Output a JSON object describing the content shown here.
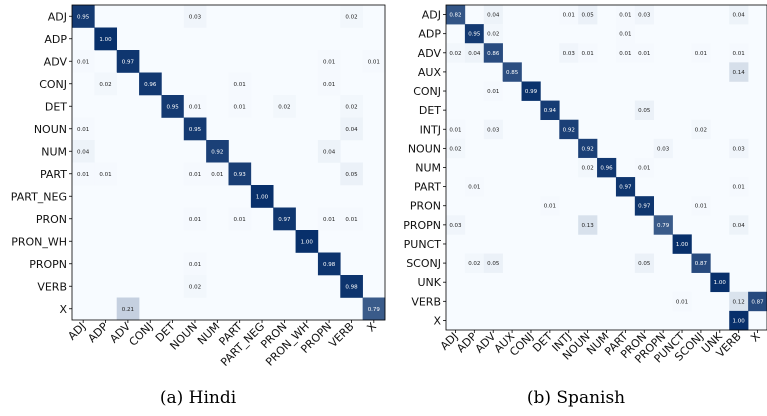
{
  "chart_data": [
    {
      "type": "heatmap",
      "caption": "(a) Hindi",
      "rows": [
        "ADJ",
        "ADP",
        "ADV",
        "CONJ",
        "DET",
        "NOUN",
        "NUM",
        "PART",
        "PART_NEG",
        "PRON",
        "PRON_WH",
        "PROPN",
        "VERB",
        "X"
      ],
      "cols": [
        "ADJ",
        "ADP",
        "ADV",
        "CONJ",
        "DET",
        "NOUN",
        "NUM",
        "PART",
        "PART_NEG",
        "PRON",
        "PRON_WH",
        "PROPN",
        "VERB",
        "X"
      ],
      "cells": [
        [
          "0.95",
          "",
          "",
          "",
          "",
          "0.03",
          "",
          "",
          "",
          "",
          "",
          "",
          "0.02",
          ""
        ],
        [
          "",
          "1.00",
          "",
          "",
          "",
          "",
          "",
          "",
          "",
          "",
          "",
          "",
          "",
          ""
        ],
        [
          "0.01",
          "",
          "0.97",
          "",
          "",
          "",
          "",
          "",
          "",
          "",
          "",
          "0.01",
          "",
          "0.01"
        ],
        [
          "",
          "0.02",
          "",
          "0.96",
          "",
          "",
          "",
          "0.01",
          "",
          "",
          "",
          "0.01",
          "",
          ""
        ],
        [
          "",
          "",
          "",
          "",
          "0.95",
          "0.01",
          "",
          "0.01",
          "",
          "0.02",
          "",
          "",
          "0.02",
          ""
        ],
        [
          "0.01",
          "",
          "",
          "",
          "",
          "0.95",
          "",
          "",
          "",
          "",
          "",
          "",
          "0.04",
          ""
        ],
        [
          "0.04",
          "",
          "",
          "",
          "",
          "",
          "0.92",
          "",
          "",
          "",
          "",
          "0.04",
          "",
          ""
        ],
        [
          "0.01",
          "0.01",
          "",
          "",
          "",
          "0.01",
          "0.01",
          "0.93",
          "",
          "",
          "",
          "",
          "0.05",
          ""
        ],
        [
          "",
          "",
          "",
          "",
          "",
          "",
          "",
          "",
          "1.00",
          "",
          "",
          "",
          "",
          ""
        ],
        [
          "",
          "",
          "",
          "",
          "",
          "0.01",
          "",
          "0.01",
          "",
          "0.97",
          "",
          "0.01",
          "0.01",
          ""
        ],
        [
          "",
          "",
          "",
          "",
          "",
          "",
          "",
          "",
          "",
          "",
          "1.00",
          "",
          "",
          ""
        ],
        [
          "",
          "",
          "",
          "",
          "",
          "0.01",
          "",
          "",
          "",
          "",
          "",
          "0.98",
          "",
          ""
        ],
        [
          "",
          "",
          "",
          "",
          "",
          "0.02",
          "",
          "",
          "",
          "",
          "",
          "",
          "0.98",
          ""
        ],
        [
          "",
          "",
          "0.21",
          "",
          "",
          "",
          "",
          "",
          "",
          "",
          "",
          "",
          "",
          "0.79"
        ]
      ]
    },
    {
      "type": "heatmap",
      "caption": "(b) Spanish",
      "rows": [
        "ADJ",
        "ADP",
        "ADV",
        "AUX",
        "CONJ",
        "DET",
        "INTJ",
        "NOUN",
        "NUM",
        "PART",
        "PRON",
        "PROPN",
        "PUNCT",
        "SCONJ",
        "UNK",
        "VERB",
        "X"
      ],
      "cols": [
        "ADJ",
        "ADP",
        "ADV",
        "AUX",
        "CONJ",
        "DET",
        "INTJ",
        "NOUN",
        "NUM",
        "PART",
        "PRON",
        "PROPN",
        "PUNCT",
        "SCONJ",
        "UNK",
        "VERB",
        "X"
      ],
      "cells": [
        [
          "0.82",
          "",
          "0.04",
          "",
          "",
          "",
          "0.01",
          "0.05",
          "",
          "0.01",
          "0.03",
          "",
          "",
          "",
          "",
          "0.04",
          ""
        ],
        [
          "",
          "0.95",
          "0.02",
          "",
          "",
          "",
          "",
          "",
          "",
          "0.01",
          "",
          "",
          "",
          "",
          "",
          "",
          ""
        ],
        [
          "0.02",
          "0.04",
          "0.86",
          "",
          "",
          "",
          "0.03",
          "0.01",
          "",
          "0.01",
          "0.01",
          "",
          "",
          "0.01",
          "",
          "0.01",
          ""
        ],
        [
          "",
          "",
          "",
          "0.85",
          "",
          "",
          "",
          "",
          "",
          "",
          "",
          "",
          "",
          "",
          "",
          "0.14",
          ""
        ],
        [
          "",
          "",
          "0.01",
          "",
          "0.99",
          "",
          "",
          "",
          "",
          "",
          "",
          "",
          "",
          "",
          "",
          "",
          ""
        ],
        [
          "",
          "",
          "",
          "",
          "",
          "0.94",
          "",
          "",
          "",
          "",
          "0.05",
          "",
          "",
          "",
          "",
          "",
          ""
        ],
        [
          "0.01",
          "",
          "0.03",
          "",
          "",
          "",
          "0.92",
          "",
          "",
          "",
          "",
          "",
          "",
          "0.02",
          "",
          "",
          ""
        ],
        [
          "0.02",
          "",
          "",
          "",
          "",
          "",
          "",
          "0.92",
          "",
          "",
          "",
          "0.03",
          "",
          "",
          "",
          "0.03",
          ""
        ],
        [
          "",
          "",
          "",
          "",
          "",
          "",
          "",
          "0.02",
          "0.96",
          "",
          "0.01",
          "",
          "",
          "",
          "",
          "",
          ""
        ],
        [
          "",
          "0.01",
          "",
          "",
          "",
          "",
          "",
          "",
          "",
          "0.97",
          "",
          "",
          "",
          "",
          "",
          "0.01",
          ""
        ],
        [
          "",
          "",
          "",
          "",
          "",
          "0.01",
          "",
          "",
          "",
          "",
          "0.97",
          "",
          "",
          "0.01",
          "",
          "",
          ""
        ],
        [
          "0.03",
          "",
          "",
          "",
          "",
          "",
          "",
          "0.13",
          "",
          "",
          "",
          "0.79",
          "",
          "",
          "",
          "0.04",
          ""
        ],
        [
          "",
          "",
          "",
          "",
          "",
          "",
          "",
          "",
          "",
          "",
          "",
          "",
          "1.00",
          "",
          "",
          "",
          ""
        ],
        [
          "",
          "0.02",
          "0.05",
          "",
          "",
          "",
          "",
          "",
          "",
          "",
          "0.05",
          "",
          "",
          "0.87",
          "",
          "",
          ""
        ],
        [
          "",
          "",
          "",
          "",
          "",
          "",
          "",
          "",
          "",
          "",
          "",
          "",
          "",
          "",
          "1.00",
          "",
          ""
        ],
        [
          "",
          "",
          "",
          "",
          "",
          "",
          "",
          "",
          "",
          "",
          "",
          "",
          "0.01",
          "",
          "",
          "0.12",
          "0.87"
        ],
        [
          "",
          "",
          "",
          "",
          "",
          "",
          "",
          "",
          "",
          "",
          "",
          "",
          "",
          "",
          "",
          "1.00",
          ""
        ]
      ]
    }
  ]
}
